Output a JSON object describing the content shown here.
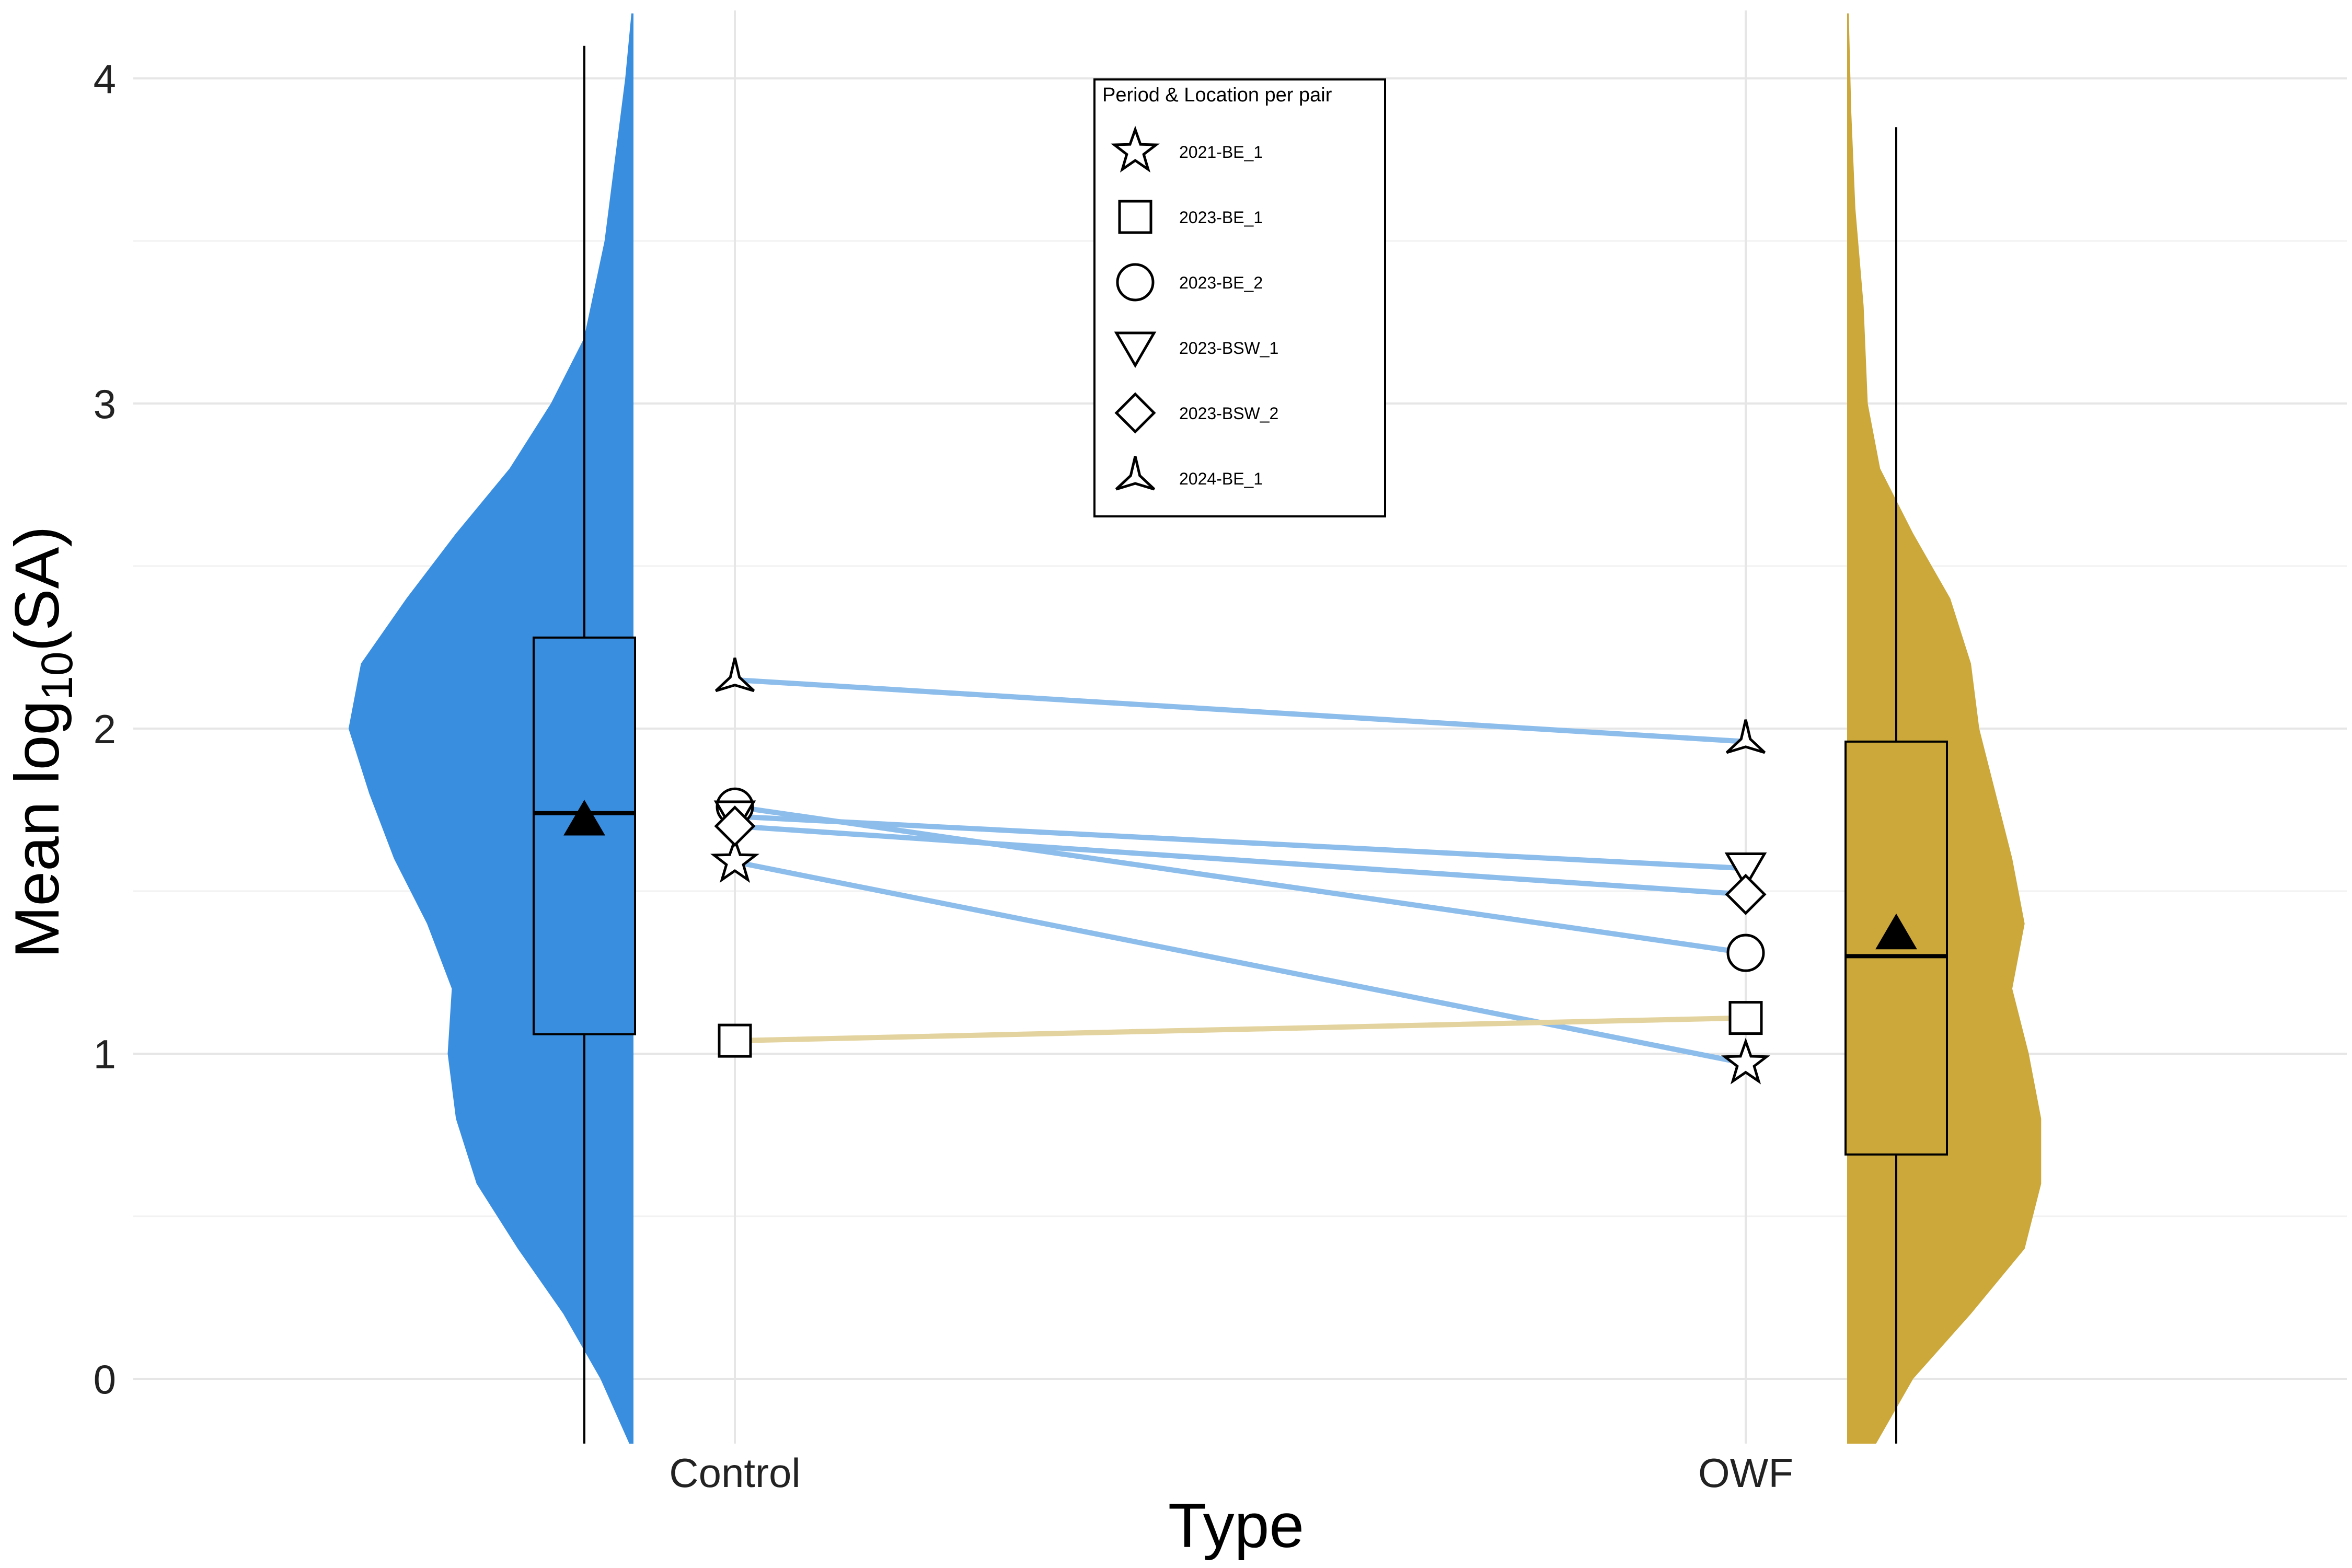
{
  "chart_data": {
    "type": "raincloud",
    "xlabel": "Type",
    "ylabel_main": "Mean log",
    "ylabel_sub": "10",
    "ylabel_tail": "(SA)",
    "ylim": [
      -0.2,
      4.2
    ],
    "yticks": [
      0,
      1,
      2,
      3,
      4
    ],
    "ytick_labels": [
      "0",
      "1",
      "2",
      "3",
      "4"
    ],
    "grid": true,
    "categories": [
      "Control",
      "OWF"
    ],
    "groups": [
      {
        "name": "Control",
        "color": "#3A8EE0",
        "box": {
          "whisker_low": -0.2,
          "q1": 1.06,
          "median": 1.74,
          "q3": 2.28,
          "whisker_high": 4.1
        },
        "mean": 1.72,
        "density": [
          [
            -0.2,
            0.01
          ],
          [
            0.0,
            0.08
          ],
          [
            0.2,
            0.17
          ],
          [
            0.4,
            0.28
          ],
          [
            0.6,
            0.38
          ],
          [
            0.8,
            0.43
          ],
          [
            1.0,
            0.45
          ],
          [
            1.2,
            0.44
          ],
          [
            1.4,
            0.5
          ],
          [
            1.6,
            0.58
          ],
          [
            1.8,
            0.64
          ],
          [
            2.0,
            0.69
          ],
          [
            2.2,
            0.66
          ],
          [
            2.4,
            0.55
          ],
          [
            2.6,
            0.43
          ],
          [
            2.8,
            0.3
          ],
          [
            3.0,
            0.2
          ],
          [
            3.2,
            0.12
          ],
          [
            3.5,
            0.07
          ],
          [
            3.8,
            0.04
          ],
          [
            4.0,
            0.02
          ],
          [
            4.2,
            0.005
          ]
        ]
      },
      {
        "name": "OWF",
        "color": "#CCA83A",
        "box": {
          "whisker_low": -0.2,
          "q1": 0.69,
          "median": 1.3,
          "q3": 1.96,
          "whisker_high": 3.85
        },
        "mean": 1.37,
        "density": [
          [
            -0.2,
            0.07
          ],
          [
            0.0,
            0.16
          ],
          [
            0.2,
            0.3
          ],
          [
            0.4,
            0.43
          ],
          [
            0.6,
            0.47
          ],
          [
            0.8,
            0.47
          ],
          [
            1.0,
            0.44
          ],
          [
            1.2,
            0.4
          ],
          [
            1.4,
            0.43
          ],
          [
            1.6,
            0.4
          ],
          [
            1.8,
            0.36
          ],
          [
            2.0,
            0.32
          ],
          [
            2.2,
            0.3
          ],
          [
            2.4,
            0.25
          ],
          [
            2.6,
            0.16
          ],
          [
            2.8,
            0.08
          ],
          [
            3.0,
            0.05
          ],
          [
            3.3,
            0.04
          ],
          [
            3.6,
            0.02
          ],
          [
            3.9,
            0.01
          ],
          [
            4.2,
            0.004
          ]
        ]
      }
    ],
    "legend": {
      "title": "Period & Location per pair",
      "placement": "top-center",
      "entries": [
        {
          "label": "2021-BE_1",
          "shape": "star"
        },
        {
          "label": "2023-BE_1",
          "shape": "square"
        },
        {
          "label": "2023-BE_2",
          "shape": "circle"
        },
        {
          "label": "2023-BSW_1",
          "shape": "triangle-down"
        },
        {
          "label": "2023-BSW_2",
          "shape": "diamond"
        },
        {
          "label": "2024-BE_1",
          "shape": "tri-spike"
        }
      ]
    },
    "pairs": [
      {
        "label": "2021-BE_1",
        "shape": "star",
        "control": 1.59,
        "owf": 0.97,
        "line_color": "#8DBDEB"
      },
      {
        "label": "2023-BE_1",
        "shape": "square",
        "control": 1.04,
        "owf": 1.11,
        "line_color": "#E3D39E"
      },
      {
        "label": "2023-BE_2",
        "shape": "circle",
        "control": 1.76,
        "owf": 1.31,
        "line_color": "#8DBDEB"
      },
      {
        "label": "2023-BSW_1",
        "shape": "triangle-down",
        "control": 1.73,
        "owf": 1.57,
        "line_color": "#8DBDEB"
      },
      {
        "label": "2023-BSW_2",
        "shape": "diamond",
        "control": 1.7,
        "owf": 1.49,
        "line_color": "#8DBDEB"
      },
      {
        "label": "2024-BE_1",
        "shape": "tri-spike",
        "control": 2.15,
        "owf": 1.96,
        "line_color": "#8DBDEB"
      }
    ]
  }
}
